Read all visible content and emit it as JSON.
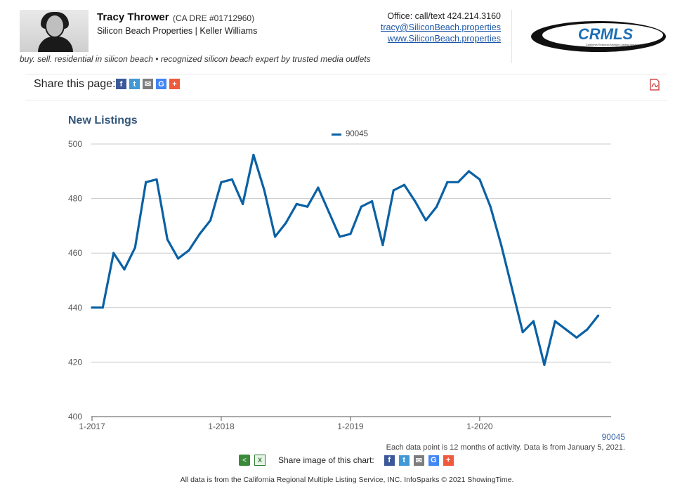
{
  "header": {
    "agent_name": "Tracy Thrower",
    "dre": "(CA DRE #01712960)",
    "company": "Silicon Beach Properties | Keller Williams",
    "office": "Office: call/text 424.214.3160",
    "email": "tracy@SiliconBeach.properties",
    "website": "www.SiliconBeach.properties",
    "tagline": "buy. sell. residential in silicon beach • recognized silicon beach expert by trusted media outlets",
    "logo_text": "CRMLS",
    "logo_subtext": "California Regional Multiple Listing Service, Inc."
  },
  "share": {
    "label": "Share this page:",
    "icons": [
      "facebook-icon",
      "twitter-icon",
      "email-icon",
      "google-icon",
      "plus-icon"
    ],
    "pdf_icon": "pdf-icon"
  },
  "chart_data": {
    "type": "line",
    "title": "New Listings",
    "series": [
      {
        "name": "90045",
        "color": "#0a61a4",
        "values": [
          440,
          440,
          460,
          454,
          462,
          486,
          487,
          465,
          458,
          461,
          467,
          472,
          486,
          487,
          478,
          496,
          483,
          466,
          471,
          478,
          477,
          484,
          475,
          466,
          467,
          477,
          479,
          463,
          483,
          485,
          479,
          472,
          477,
          486,
          486,
          490,
          487,
          477,
          463,
          447,
          431,
          435,
          419,
          435,
          432,
          429,
          432,
          437
        ]
      }
    ],
    "x_start": "1-2017",
    "x_end": "12-2020",
    "x_tick_labels": [
      "1-2017",
      "1-2018",
      "1-2019",
      "1-2020"
    ],
    "y_ticks": [
      400,
      420,
      440,
      460,
      480,
      500
    ],
    "ylim": [
      400,
      500
    ],
    "grid": true,
    "legend_position": "top-center",
    "series_label_bottom": "90045",
    "note": "Each data point is 12 months of activity. Data is from January 5, 2021."
  },
  "share_image": {
    "label": "Share image of this chart:"
  },
  "footer": "All data is from the California Regional Multiple Listing Service, INC. InfoSparks © 2021 ShowingTime."
}
